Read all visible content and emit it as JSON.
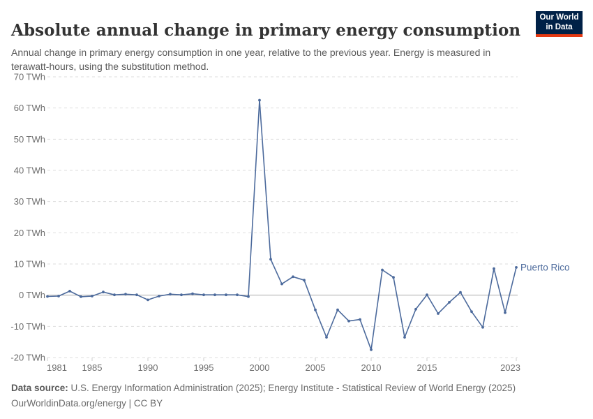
{
  "header": {
    "title": "Absolute annual change in primary energy consumption",
    "subtitle": "Annual change in primary energy consumption in one year, relative to the previous year. Energy is measured in terawatt-hours, using the substitution method.",
    "logo": {
      "line1": "Our World",
      "line2": "in Data"
    }
  },
  "footer": {
    "datasource_label": "Data source:",
    "datasource_text": " U.S. Energy Information Administration (2025); Energy Institute - Statistical Review of World Energy (2025)",
    "license_line": "OurWorldinData.org/energy | CC BY"
  },
  "colors": {
    "line": "#4C6A9C",
    "grid": "#DDDDDD",
    "zero_line": "#A9A9A9",
    "tick_stub": "#CCCCCC",
    "axis_text": "#6E6E6E",
    "logo_bg": "#002147",
    "logo_red": "#E63912",
    "title_text": "#333333",
    "subtitle_text": "#595959"
  },
  "chart_data": {
    "type": "line",
    "title": "Absolute annual change in primary energy consumption",
    "unit": "TWh",
    "xlabel": "",
    "ylabel": "",
    "x_range": [
      1981,
      2023
    ],
    "ylim": [
      -20,
      70
    ],
    "grid": "horizontal-dashed",
    "zero_line": true,
    "legend_position": "label-at-line-end",
    "y_ticks": [
      {
        "v": 70,
        "label": "70 TWh"
      },
      {
        "v": 60,
        "label": "60 TWh"
      },
      {
        "v": 50,
        "label": "50 TWh"
      },
      {
        "v": 40,
        "label": "40 TWh"
      },
      {
        "v": 30,
        "label": "30 TWh"
      },
      {
        "v": 20,
        "label": "20 TWh"
      },
      {
        "v": 10,
        "label": "10 TWh"
      },
      {
        "v": 0,
        "label": "0 TWh"
      },
      {
        "v": -10,
        "label": "-10 TWh"
      },
      {
        "v": -20,
        "label": "-20 TWh"
      }
    ],
    "x_ticks": [
      {
        "v": 1981,
        "label": "1981",
        "align": "start"
      },
      {
        "v": 1985,
        "label": "1985",
        "align": "middle"
      },
      {
        "v": 1990,
        "label": "1990",
        "align": "middle"
      },
      {
        "v": 1995,
        "label": "1995",
        "align": "middle"
      },
      {
        "v": 2000,
        "label": "2000",
        "align": "middle"
      },
      {
        "v": 2005,
        "label": "2005",
        "align": "middle"
      },
      {
        "v": 2010,
        "label": "2010",
        "align": "middle"
      },
      {
        "v": 2015,
        "label": "2015",
        "align": "middle"
      },
      {
        "v": 2023,
        "label": "2023",
        "align": "end"
      }
    ],
    "series": [
      {
        "name": "Puerto Rico",
        "color": "#4C6A9C",
        "x": [
          1981,
          1982,
          1983,
          1984,
          1985,
          1986,
          1987,
          1988,
          1989,
          1990,
          1991,
          1992,
          1993,
          1994,
          1995,
          1996,
          1997,
          1998,
          1999,
          2000,
          2001,
          2002,
          2003,
          2004,
          2005,
          2006,
          2007,
          2008,
          2009,
          2010,
          2011,
          2012,
          2013,
          2014,
          2015,
          2016,
          2017,
          2018,
          2019,
          2020,
          2021,
          2022,
          2023
        ],
        "values": [
          -0.4,
          -0.3,
          1.3,
          -0.5,
          -0.3,
          1.0,
          0.1,
          0.3,
          0.1,
          -1.5,
          -0.3,
          0.3,
          0.1,
          0.45,
          0.1,
          0.1,
          0.1,
          0.1,
          -0.45,
          62.5,
          11.5,
          3.6,
          5.9,
          4.8,
          -4.7,
          -13.5,
          -4.7,
          -8.3,
          -7.8,
          -17.5,
          8.1,
          5.7,
          -13.5,
          -4.5,
          0.1,
          -5.9,
          -2.3,
          0.9,
          -5.3,
          -10.3,
          8.5,
          -5.6,
          8.9
        ]
      }
    ]
  }
}
